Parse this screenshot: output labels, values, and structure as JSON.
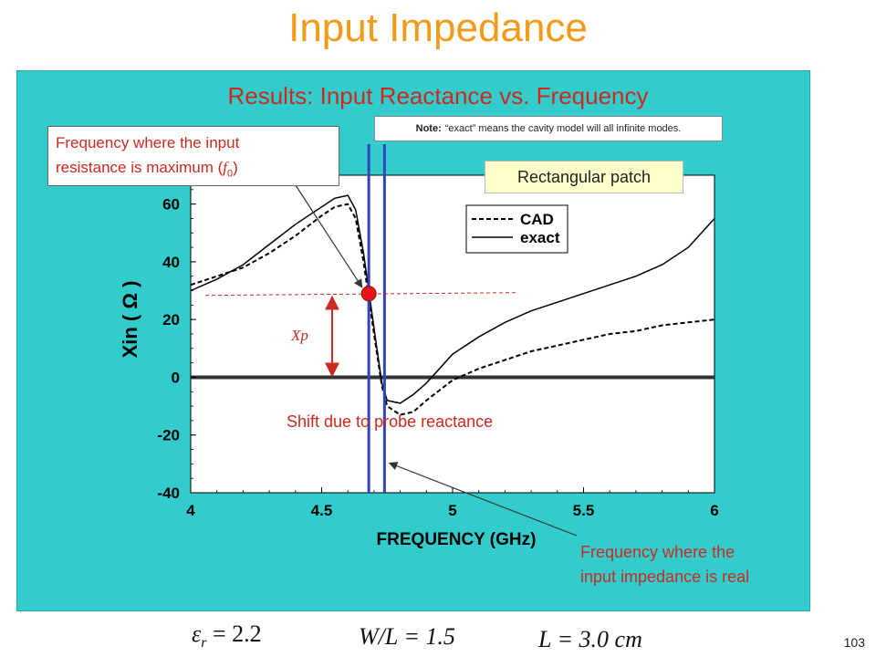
{
  "slide_title": "Input Impedance",
  "panel_title": "Results: Input Reactance vs. Frequency",
  "note_label": "Note:",
  "note_text": "“exact” means the cavity model will all infinite modes.",
  "callout_resistance": {
    "line1": "Frequency where the input",
    "line2_prefix": "resistance is maximum (",
    "line2_symbol": "f",
    "line2_sub": "0",
    "line2_suffix": ")"
  },
  "rect_patch_label": "Rectangular patch",
  "shift_label": "Shift due to probe reactance",
  "xp_label": "Xp",
  "callout_real": {
    "line1": "Frequency where the",
    "line2": "input impedance is real"
  },
  "bottom": {
    "eps_symbol": "ε",
    "eps_sub": "r",
    "eps_value": " = 2.2",
    "wl": "W/L = 1.5",
    "l": "L = 3.0 cm"
  },
  "slide_number": "103",
  "colors": {
    "title": "#f39a1a",
    "panel": "#33cccc",
    "red": "#cc2a1f",
    "blue": "#3344bb"
  },
  "chart_data": {
    "type": "line",
    "xlabel": "FREQUENCY (GHz)",
    "ylabel": "Xin ( Ω )",
    "xlim": [
      4,
      6
    ],
    "ylim": [
      -40,
      70
    ],
    "xticks": [
      "4",
      "4.5",
      "5",
      "5.5",
      "6"
    ],
    "yticks": [
      "60",
      "40",
      "20",
      "0",
      "-20",
      "-40"
    ],
    "legend_position": "top-right",
    "series": [
      {
        "name": "CAD",
        "style": "dashed",
        "x": [
          4.0,
          4.1,
          4.2,
          4.3,
          4.4,
          4.5,
          4.55,
          4.6,
          4.63,
          4.66,
          4.7,
          4.73,
          4.75,
          4.8,
          4.85,
          4.9,
          5.0,
          5.1,
          5.2,
          5.3,
          5.4,
          5.5,
          5.6,
          5.7,
          5.8,
          5.9,
          6.0
        ],
        "y": [
          32,
          35,
          38,
          43,
          49,
          56,
          59,
          60,
          55,
          40,
          15,
          -3,
          -10,
          -13,
          -12,
          -8,
          -1,
          3,
          6,
          9,
          11,
          13,
          15,
          16,
          18,
          19,
          20
        ]
      },
      {
        "name": "exact",
        "style": "solid",
        "x": [
          4.0,
          4.1,
          4.2,
          4.3,
          4.4,
          4.5,
          4.55,
          4.6,
          4.63,
          4.66,
          4.7,
          4.73,
          4.75,
          4.8,
          4.85,
          4.9,
          5.0,
          5.1,
          5.2,
          5.3,
          5.4,
          5.5,
          5.6,
          5.7,
          5.8,
          5.9,
          6.0
        ],
        "y": [
          30,
          34,
          39,
          46,
          53,
          59,
          62,
          63,
          58,
          43,
          17,
          -2,
          -8,
          -9,
          -6,
          -2,
          8,
          14,
          19,
          23,
          26,
          29,
          32,
          35,
          39,
          45,
          55
        ]
      }
    ],
    "markers": {
      "resistance_max_freq": 4.68,
      "real_impedance_freq": 4.74,
      "red_point": {
        "x": 4.68,
        "y": 29
      }
    }
  }
}
